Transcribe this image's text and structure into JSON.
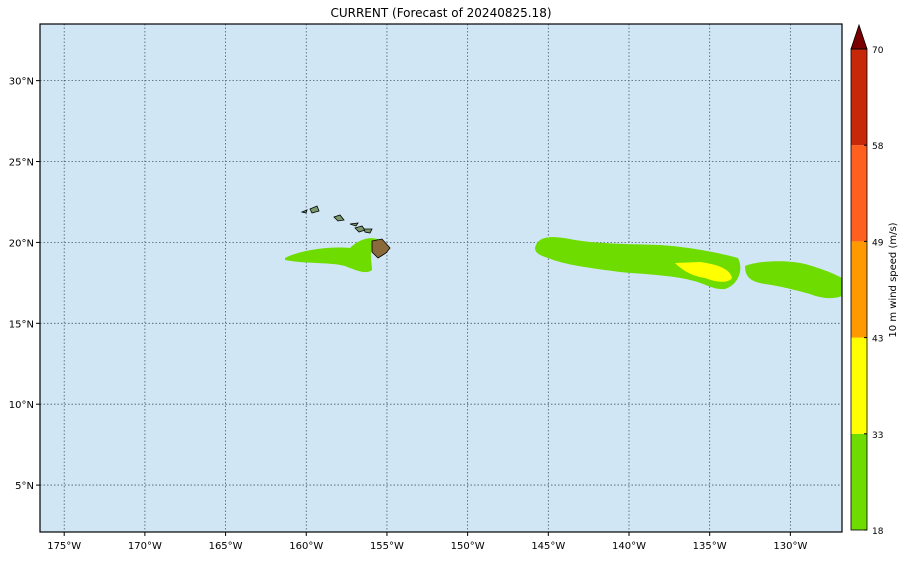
{
  "title": "CURRENT (Forecast of 20240825.18)",
  "map": {
    "xlim": [
      -176.5,
      -126.8
    ],
    "ylim": [
      2.1,
      33.5
    ],
    "xticks": [
      {
        "value": -175,
        "label": "175°W"
      },
      {
        "value": -170,
        "label": "170°W"
      },
      {
        "value": -165,
        "label": "165°W"
      },
      {
        "value": -160,
        "label": "160°W"
      },
      {
        "value": -155,
        "label": "155°W"
      },
      {
        "value": -150,
        "label": "150°W"
      },
      {
        "value": -145,
        "label": "145°W"
      },
      {
        "value": -140,
        "label": "140°W"
      },
      {
        "value": -135,
        "label": "135°W"
      },
      {
        "value": -130,
        "label": "130°W"
      }
    ],
    "yticks": [
      {
        "value": 5,
        "label": "5°N"
      },
      {
        "value": 10,
        "label": "10°N"
      },
      {
        "value": 15,
        "label": "15°N"
      },
      {
        "value": 20,
        "label": "20°N"
      },
      {
        "value": 25,
        "label": "25°N"
      },
      {
        "value": 30,
        "label": "30°N"
      }
    ],
    "grid": true
  },
  "colorbar": {
    "label": "10 m wind speed (m/s)",
    "ticks": [
      18,
      33,
      43,
      49,
      58,
      70
    ],
    "colors": [
      "#6fdc00",
      "#ffff00",
      "#ff9900",
      "#ff6020",
      "#c8280a"
    ],
    "extend_color": "#7a0000"
  }
}
